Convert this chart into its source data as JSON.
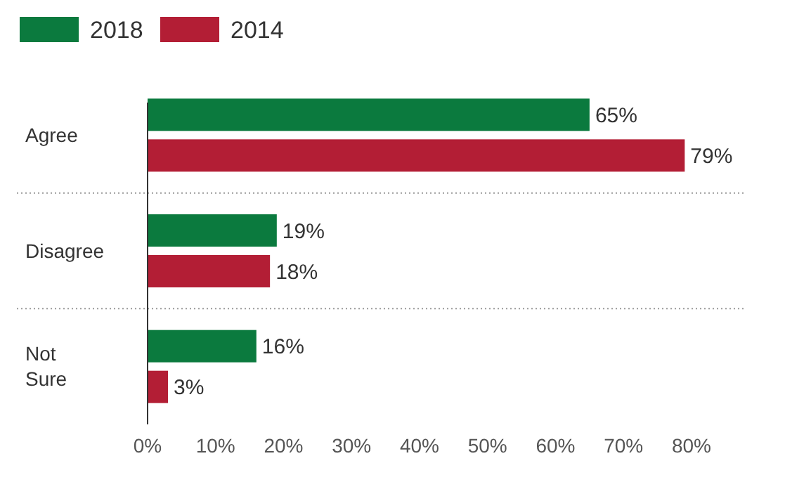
{
  "chart_data": {
    "type": "bar",
    "orientation": "horizontal",
    "categories": [
      "Agree",
      "Disagree",
      "Not Sure"
    ],
    "series": [
      {
        "name": "2018",
        "color": "#0b7a3e",
        "values": [
          65,
          19,
          16
        ],
        "value_labels": [
          "65%",
          "19%",
          "16%"
        ]
      },
      {
        "name": "2014",
        "color": "#b31e35",
        "values": [
          79,
          18,
          3
        ],
        "value_labels": [
          "79%",
          "18%",
          "3%"
        ]
      }
    ],
    "xlim": [
      0,
      80
    ],
    "xticks": [
      {
        "value": 0,
        "label": "0%"
      },
      {
        "value": 10,
        "label": "10%"
      },
      {
        "value": 20,
        "label": "20%"
      },
      {
        "value": 30,
        "label": "30%"
      },
      {
        "value": 40,
        "label": "40%"
      },
      {
        "value": 50,
        "label": "50%"
      },
      {
        "value": 60,
        "label": "60%"
      },
      {
        "value": 70,
        "label": "70%"
      },
      {
        "value": 80,
        "label": "80%"
      }
    ],
    "legend": "top left",
    "grid": false
  }
}
